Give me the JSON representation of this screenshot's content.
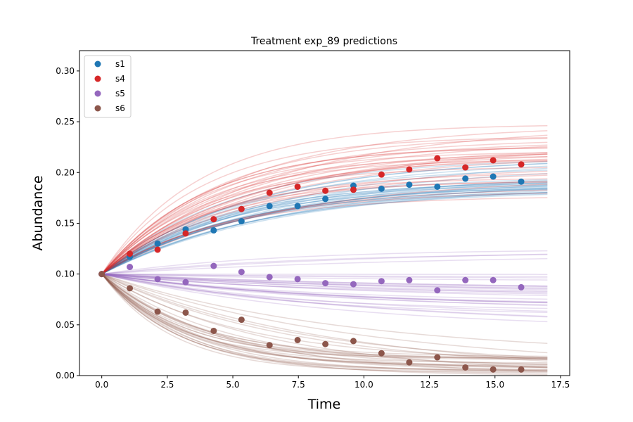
{
  "chart_data": {
    "type": "scatter",
    "title": "Treatment exp_89 predictions",
    "xlabel": "Time",
    "ylabel": "Abundance",
    "xlim": [
      -0.85,
      17.85
    ],
    "ylim": [
      0.0,
      0.32
    ],
    "xticks": [
      0.0,
      2.5,
      5.0,
      7.5,
      10.0,
      12.5,
      15.0,
      17.5
    ],
    "yticks": [
      0.0,
      0.05,
      0.1,
      0.15,
      0.2,
      0.25,
      0.3
    ],
    "xtick_labels": [
      "0.0",
      "2.5",
      "5.0",
      "7.5",
      "10.0",
      "12.5",
      "15.0",
      "17.5"
    ],
    "ytick_labels": [
      "0.00",
      "0.05",
      "0.10",
      "0.15",
      "0.20",
      "0.25",
      "0.30"
    ],
    "grid": false,
    "legend_position": "top-left",
    "series": [
      {
        "name": "s1",
        "color": "#1f77b4",
        "x": [
          0.0,
          1.07,
          2.13,
          3.2,
          4.27,
          5.33,
          6.4,
          7.47,
          8.53,
          9.6,
          10.67,
          11.73,
          12.8,
          13.87,
          14.93,
          16.0
        ],
        "y": [
          0.1,
          0.117,
          0.13,
          0.144,
          0.143,
          0.152,
          0.167,
          0.167,
          0.174,
          0.187,
          0.184,
          0.188,
          0.186,
          0.194,
          0.196,
          0.191
        ],
        "ensemble": {
          "y0": 0.1,
          "plateau_min": 0.182,
          "plateau_max": 0.215,
          "rate_min": 0.14,
          "rate_max": 0.22,
          "count": 30,
          "t_end": 17.0
        }
      },
      {
        "name": "s4",
        "color": "#d62728",
        "x": [
          0.0,
          1.07,
          2.13,
          3.2,
          4.27,
          5.33,
          6.4,
          7.47,
          8.53,
          9.6,
          10.67,
          11.73,
          12.8,
          13.87,
          14.93,
          16.0
        ],
        "y": [
          0.1,
          0.12,
          0.124,
          0.14,
          0.154,
          0.164,
          0.18,
          0.186,
          0.182,
          0.183,
          0.198,
          0.203,
          0.214,
          0.205,
          0.212,
          0.208
        ],
        "ensemble": {
          "y0": 0.1,
          "plateau_min": 0.175,
          "plateau_max": 0.25,
          "rate_min": 0.15,
          "rate_max": 0.27,
          "count": 32,
          "t_end": 17.0
        }
      },
      {
        "name": "s5",
        "color": "#9467bd",
        "x": [
          0.0,
          1.07,
          2.13,
          3.2,
          4.27,
          5.33,
          6.4,
          7.47,
          8.53,
          9.6,
          10.67,
          11.73,
          12.8,
          13.87,
          14.93,
          16.0
        ],
        "y": [
          0.1,
          0.107,
          0.095,
          0.092,
          0.108,
          0.102,
          0.097,
          0.095,
          0.091,
          0.09,
          0.093,
          0.094,
          0.084,
          0.094,
          0.094,
          0.087
        ],
        "ensemble": {
          "y0": 0.1,
          "plateau_min": 0.04,
          "plateau_max": 0.125,
          "rate_min": 0.08,
          "rate_max": 0.16,
          "count": 32,
          "t_end": 17.0
        }
      },
      {
        "name": "s6",
        "color": "#8c564b",
        "x": [
          0.0,
          1.07,
          2.13,
          3.2,
          4.27,
          5.33,
          6.4,
          7.47,
          8.53,
          9.6,
          10.67,
          11.73,
          12.8,
          13.87,
          14.93,
          16.0
        ],
        "y": [
          0.1,
          0.086,
          0.063,
          0.062,
          0.044,
          0.055,
          0.03,
          0.035,
          0.031,
          0.034,
          0.022,
          0.013,
          0.018,
          0.008,
          0.006,
          0.006
        ],
        "ensemble": {
          "y0": 0.1,
          "plateau_min": 0.0,
          "plateau_max": 0.02,
          "rate_min": 0.1,
          "rate_max": 0.38,
          "count": 30,
          "t_end": 17.0
        }
      }
    ]
  }
}
